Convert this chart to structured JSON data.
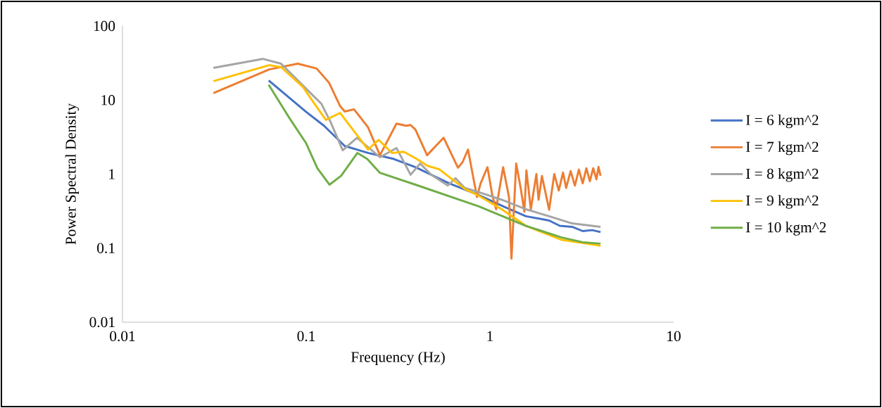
{
  "chart_data": {
    "type": "line",
    "xlabel": "Frequency (Hz)",
    "ylabel": "Power Spectral Density",
    "log": "xy",
    "grid": false,
    "legend": "right",
    "marker": "none",
    "line_style": "solid",
    "xlim": [
      0.01,
      10
    ],
    "ylim": [
      0.01,
      100
    ],
    "xticks": [
      0.01,
      0.1,
      1,
      10
    ],
    "yticks": [
      0.01,
      0.1,
      1,
      10,
      100
    ],
    "series": [
      {
        "name": "I = 6 kgm^2",
        "color": "#4472c4",
        "x": [
          0.0625,
          0.1,
          0.125,
          0.162,
          0.217,
          0.3,
          0.393,
          0.6,
          0.87,
          1.2,
          1.57,
          2.1,
          2.4,
          2.8,
          3.2,
          3.6,
          4.0
        ],
        "values": [
          18.4,
          6.9,
          4.5,
          2.4,
          1.93,
          1.6,
          1.24,
          0.75,
          0.52,
          0.36,
          0.27,
          0.236,
          0.2,
          0.194,
          0.17,
          0.175,
          0.165
        ]
      },
      {
        "name": "I = 7 kgm^2",
        "color": "#ed7d31",
        "x": [
          0.03125,
          0.063,
          0.09,
          0.114,
          0.133,
          0.153,
          0.162,
          0.182,
          0.217,
          0.252,
          0.31,
          0.35,
          0.37,
          0.393,
          0.455,
          0.56,
          0.67,
          0.71,
          0.76,
          0.85,
          0.89,
          0.97,
          1.03,
          1.08,
          1.18,
          1.27,
          1.31,
          1.39,
          1.47,
          1.54,
          1.58,
          1.67,
          1.79,
          1.84,
          1.92,
          2.1,
          2.24,
          2.37,
          2.5,
          2.6,
          2.75,
          2.9,
          3.05,
          3.2,
          3.35,
          3.5,
          3.65,
          3.8,
          3.9,
          4.0
        ],
        "values": [
          12.4,
          26,
          31,
          26.7,
          17.2,
          8.3,
          7.0,
          7.5,
          4.3,
          1.8,
          4.8,
          4.5,
          4.6,
          4.0,
          1.8,
          3.1,
          1.22,
          1.45,
          2.15,
          0.49,
          0.75,
          1.24,
          0.52,
          0.335,
          1.24,
          0.49,
          0.072,
          1.39,
          0.65,
          0.31,
          1.12,
          0.335,
          1.0,
          0.45,
          0.94,
          0.33,
          1.0,
          0.6,
          1.05,
          0.65,
          1.1,
          0.7,
          1.15,
          0.75,
          1.2,
          0.8,
          1.2,
          0.85,
          1.25,
          0.95
        ]
      },
      {
        "name": "I = 8 kgm^2",
        "color": "#a5a5a5",
        "x": [
          0.03125,
          0.058,
          0.073,
          0.104,
          0.121,
          0.136,
          0.158,
          0.189,
          0.252,
          0.31,
          0.37,
          0.417,
          0.48,
          0.59,
          0.65,
          0.73,
          0.87,
          1.16,
          1.57,
          2.1,
          2.8,
          4.0
        ],
        "values": [
          27.2,
          36,
          31,
          12.9,
          8.9,
          5.0,
          2.1,
          3.1,
          1.69,
          2.25,
          0.98,
          1.39,
          0.98,
          0.7,
          0.88,
          0.65,
          0.57,
          0.45,
          0.335,
          0.27,
          0.216,
          0.194
        ]
      },
      {
        "name": "I = 9 kgm^2",
        "color": "#ffc000",
        "x": [
          0.03125,
          0.063,
          0.073,
          0.096,
          0.111,
          0.128,
          0.153,
          0.217,
          0.248,
          0.293,
          0.34,
          0.4,
          0.455,
          0.53,
          0.73,
          0.87,
          1.16,
          1.57,
          2.44,
          3.8,
          4.0
        ],
        "values": [
          18,
          29.6,
          27.8,
          15,
          8.9,
          5.4,
          6.7,
          2.15,
          2.9,
          1.93,
          2.0,
          1.6,
          1.3,
          1.16,
          0.63,
          0.51,
          0.335,
          0.2,
          0.13,
          0.11,
          0.107
        ]
      },
      {
        "name": "I = 10 kgm^2",
        "color": "#70ad47",
        "x": [
          0.0625,
          0.08,
          0.1,
          0.115,
          0.134,
          0.155,
          0.19,
          0.215,
          0.252,
          0.393,
          0.87,
          1.57,
          2.44,
          3.2,
          4.0
        ],
        "values": [
          16.1,
          6,
          2.6,
          1.2,
          0.72,
          0.95,
          1.93,
          1.6,
          1.04,
          0.72,
          0.366,
          0.2,
          0.14,
          0.12,
          0.115
        ]
      }
    ]
  }
}
